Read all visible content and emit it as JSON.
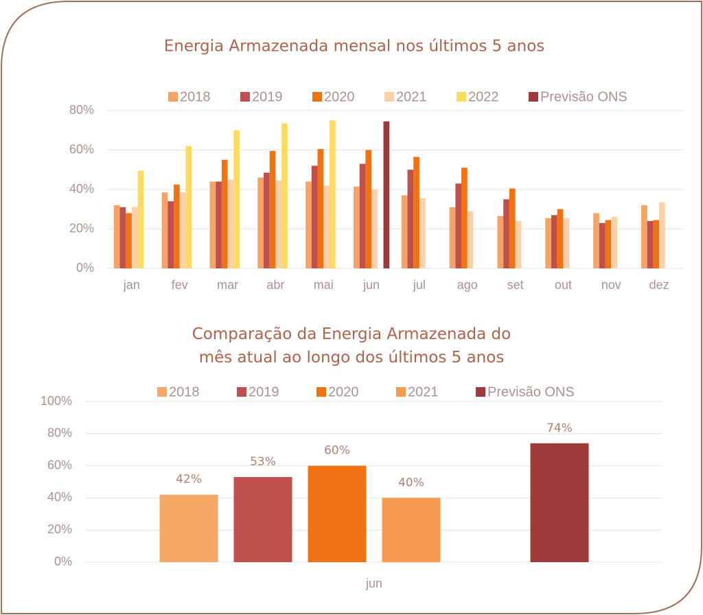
{
  "chart_data": [
    {
      "type": "bar",
      "title": "Energia Armazenada mensal nos últimos 5 anos",
      "categories": [
        "jan",
        "fev",
        "mar",
        "abr",
        "mai",
        "jun",
        "jul",
        "ago",
        "set",
        "out",
        "nov",
        "dez"
      ],
      "series": [
        {
          "name": "2018",
          "color": "#f4a467",
          "values": [
            32,
            38.5,
            44,
            46,
            44,
            41.5,
            37,
            31,
            26.5,
            25.5,
            28,
            32
          ]
        },
        {
          "name": "2019",
          "color": "#c0504d",
          "values": [
            31,
            34,
            44,
            48.5,
            52,
            53,
            50,
            43,
            35,
            27,
            23,
            24
          ]
        },
        {
          "name": "2020",
          "color": "#f07212",
          "values": [
            28,
            42.5,
            55,
            59.5,
            60.5,
            60,
            56.5,
            51,
            40.5,
            30,
            24.5,
            24.5
          ]
        },
        {
          "name": "2021",
          "color": "#fcd0a8",
          "values": [
            31,
            38.5,
            45,
            44.5,
            42,
            40,
            35.5,
            29,
            24,
            25.5,
            26,
            33.5
          ]
        },
        {
          "name": "2022",
          "color": "#fedb62",
          "values": [
            49.5,
            62,
            70,
            73.5,
            75,
            null,
            null,
            null,
            null,
            null,
            null,
            null
          ]
        },
        {
          "name": "Previsão ONS",
          "color": "#a0393a",
          "values": [
            null,
            null,
            null,
            null,
            null,
            74.5,
            null,
            null,
            null,
            null,
            null,
            null
          ]
        }
      ],
      "ylim": [
        0,
        80
      ],
      "yticks": [
        {
          "value": 0,
          "label": "0%"
        },
        {
          "value": 20,
          "label": "20%"
        },
        {
          "value": 40,
          "label": "40%"
        },
        {
          "value": 60,
          "label": "60%"
        },
        {
          "value": 80,
          "label": "80%"
        }
      ],
      "grid": true,
      "legend": "top"
    },
    {
      "type": "bar",
      "title": "Comparação da Energia Armazenada do mês atual ao longo dos últimos 5 anos",
      "categories": [
        "jun"
      ],
      "series": [
        {
          "name": "2018",
          "color": "#f6a867",
          "values": [
            42
          ],
          "value_labels": [
            "42%"
          ]
        },
        {
          "name": "2019",
          "color": "#c0504d",
          "values": [
            53
          ],
          "value_labels": [
            "53%"
          ]
        },
        {
          "name": "2020",
          "color": "#f07212",
          "values": [
            60
          ],
          "value_labels": [
            "60%"
          ]
        },
        {
          "name": "2021",
          "color": "#f79a52",
          "values": [
            40
          ],
          "value_labels": [
            "40%"
          ]
        },
        {
          "name": "Previsão ONS",
          "color": "#a0393a",
          "values": [
            74
          ],
          "value_labels": [
            "74%"
          ]
        }
      ],
      "ylim": [
        0,
        100
      ],
      "yticks": [
        {
          "value": 0,
          "label": "0%"
        },
        {
          "value": 20,
          "label": "20%"
        },
        {
          "value": 40,
          "label": "40%"
        },
        {
          "value": 60,
          "label": "60%"
        },
        {
          "value": 80,
          "label": "80%"
        },
        {
          "value": 100,
          "label": "100%"
        }
      ],
      "grid": true,
      "legend": "top"
    }
  ]
}
